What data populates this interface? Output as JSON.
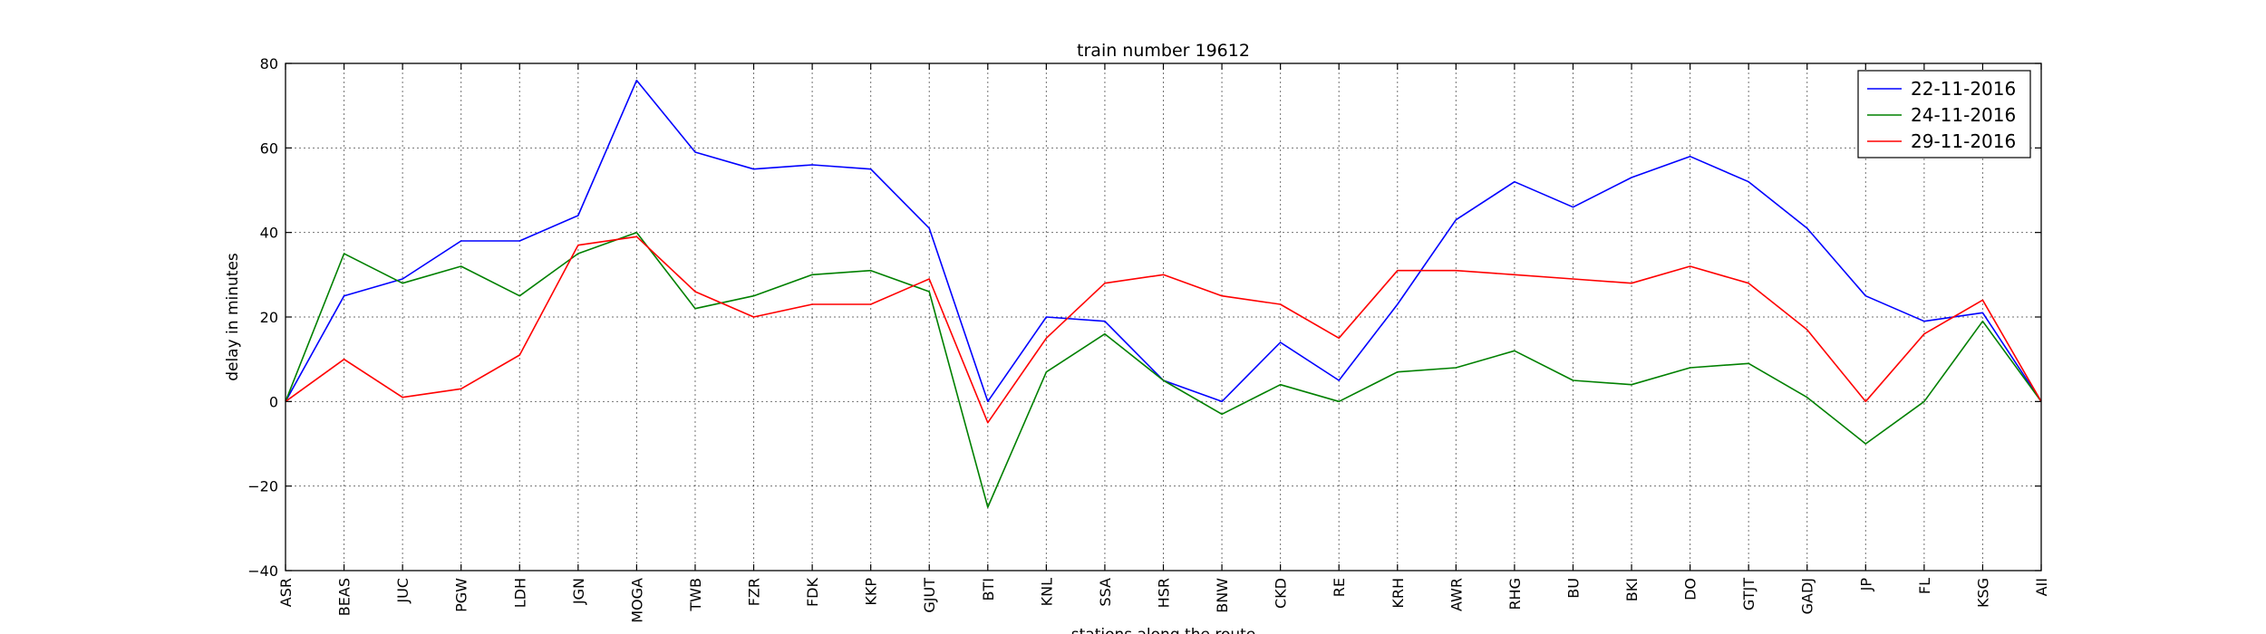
{
  "chart_data": {
    "type": "line",
    "title": "train number 19612",
    "xlabel": "stations along the route",
    "ylabel": "delay in minutes",
    "ylim": [
      -40,
      80
    ],
    "yticks": [
      "−40",
      "−20",
      "0",
      "20",
      "40",
      "60",
      "80"
    ],
    "ytick_values": [
      -40,
      -20,
      0,
      20,
      40,
      60,
      80
    ],
    "grid": true,
    "legend_position": "top-right",
    "categories": [
      "ASR",
      "BEAS",
      "JUC",
      "PGW",
      "LDH",
      "JGN",
      "MOGA",
      "TWB",
      "FZR",
      "FDK",
      "KKP",
      "GJUT",
      "BTI",
      "KNL",
      "SSA",
      "HSR",
      "BNW",
      "CKD",
      "RE",
      "KRH",
      "AWR",
      "RHG",
      "BU",
      "BKI",
      "DO",
      "GTJT",
      "GADJ",
      "JP",
      "FL",
      "KSG",
      "AII"
    ],
    "series": [
      {
        "name": "22-11-2016",
        "color": "#0000ff",
        "values": [
          0,
          25,
          29,
          38,
          38,
          44,
          76,
          59,
          55,
          56,
          55,
          41,
          0,
          20,
          19,
          5,
          0,
          14,
          5,
          23,
          43,
          52,
          46,
          53,
          58,
          52,
          41,
          25,
          19,
          21,
          0
        ]
      },
      {
        "name": "24-11-2016",
        "color": "#008000",
        "values": [
          0,
          35,
          28,
          32,
          25,
          35,
          40,
          22,
          25,
          30,
          31,
          26,
          -25,
          7,
          16,
          5,
          -3,
          4,
          0,
          7,
          8,
          12,
          5,
          4,
          8,
          9,
          1,
          -10,
          0,
          19,
          0
        ]
      },
      {
        "name": "29-11-2016",
        "color": "#ff0000",
        "values": [
          0,
          10,
          1,
          3,
          11,
          37,
          39,
          26,
          20,
          23,
          23,
          29,
          -5,
          15,
          28,
          30,
          25,
          23,
          15,
          31,
          31,
          30,
          29,
          28,
          32,
          28,
          17,
          0,
          16,
          24,
          0
        ]
      }
    ]
  }
}
